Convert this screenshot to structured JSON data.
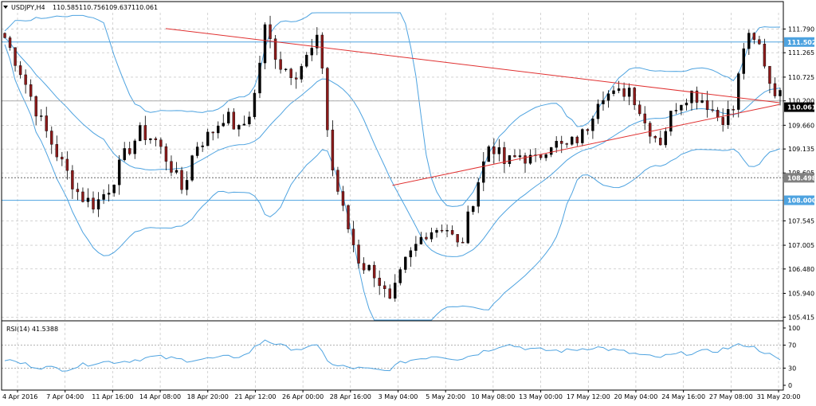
{
  "colors": {
    "background": "#ffffff",
    "grid": "#b8b8b8",
    "bull_candle": "#000000",
    "bear_candle": "#8b1a1a",
    "bollinger": "#4ea3e0",
    "level_line": "#4ea3e0",
    "trend_line": "#e03030",
    "rsi_line": "#4ea3e0",
    "price_tag_current": "#000000"
  },
  "chart_data": {
    "type": "candlestick",
    "title": "USDJPY,H4",
    "header": {
      "symbol_label": "USDJPY,H4",
      "open": "110.585",
      "high": "110.756",
      "low": "109.637",
      "close": "110.061"
    },
    "ylim": [
      105.35,
      112.15
    ],
    "y_ticks": [
      "111.790",
      "111.265",
      "110.725",
      "110.200",
      "109.660",
      "109.135",
      "108.605",
      "107.545",
      "107.005",
      "106.480",
      "105.940",
      "105.415"
    ],
    "x_tick_labels": [
      "4 Apr 2016",
      "7 Apr 04:00",
      "11 Apr 16:00",
      "14 Apr 08:00",
      "18 Apr 20:00",
      "21 Apr 12:00",
      "26 Apr 00:00",
      "28 Apr 16:00",
      "3 May 04:00",
      "5 May 20:00",
      "10 May 08:00",
      "13 May 00:00",
      "17 May 12:00",
      "20 May 04:00",
      "24 May 16:00",
      "27 May 08:00",
      "31 May 20:00"
    ],
    "horizontal_levels": [
      {
        "value": 111.502,
        "label": "111.502",
        "style": "solid"
      },
      {
        "value": 110.2,
        "label": "",
        "style": "solid-gray"
      },
      {
        "value": 108.498,
        "label": "108.498",
        "style": "dotted"
      },
      {
        "value": 108.0,
        "label": "108.000",
        "style": "solid"
      }
    ],
    "current_price": {
      "value": 110.061,
      "label": "110.061"
    },
    "trendlines": [
      {
        "from": [
          0.21,
          111.8
        ],
        "to": [
          0.995,
          110.16
        ]
      },
      {
        "from": [
          0.5,
          108.33
        ],
        "to": [
          0.995,
          110.12
        ]
      }
    ],
    "price_anchors": [
      [
        0,
        111.6
      ],
      [
        0.015,
        110.9
      ],
      [
        0.035,
        109.8
      ],
      [
        0.055,
        108.9
      ],
      [
        0.075,
        108.1
      ],
      [
        0.09,
        107.9
      ],
      [
        0.105,
        108.3
      ],
      [
        0.12,
        109.0
      ],
      [
        0.135,
        109.5
      ],
      [
        0.15,
        109.35
      ],
      [
        0.165,
        108.8
      ],
      [
        0.178,
        108.2
      ],
      [
        0.19,
        109.2
      ],
      [
        0.205,
        109.45
      ],
      [
        0.22,
        109.9
      ],
      [
        0.235,
        109.5
      ],
      [
        0.248,
        110.1
      ],
      [
        0.26,
        111.8
      ],
      [
        0.275,
        111.0
      ],
      [
        0.29,
        110.8
      ],
      [
        0.305,
        111.25
      ],
      [
        0.315,
        111.6
      ],
      [
        0.325,
        108.9
      ],
      [
        0.34,
        107.6
      ],
      [
        0.355,
        106.6
      ],
      [
        0.37,
        106.4
      ],
      [
        0.385,
        105.7
      ],
      [
        0.4,
        106.6
      ],
      [
        0.42,
        107.3
      ],
      [
        0.44,
        107.45
      ],
      [
        0.455,
        106.9
      ],
      [
        0.47,
        108.2
      ],
      [
        0.485,
        109.3
      ],
      [
        0.5,
        108.8
      ],
      [
        0.515,
        109.0
      ],
      [
        0.53,
        108.85
      ],
      [
        0.545,
        109.3
      ],
      [
        0.56,
        109.15
      ],
      [
        0.58,
        109.5
      ],
      [
        0.595,
        110.4
      ],
      [
        0.61,
        110.3
      ],
      [
        0.625,
        110.5
      ],
      [
        0.64,
        109.7
      ],
      [
        0.655,
        109.3
      ],
      [
        0.67,
        110.1
      ],
      [
        0.685,
        110.4
      ],
      [
        0.7,
        110.2
      ],
      [
        0.715,
        109.8
      ],
      [
        0.728,
        110.0
      ],
      [
        0.74,
        111.6
      ],
      [
        0.755,
        111.4
      ],
      [
        0.765,
        110.6
      ],
      [
        0.775,
        110.3
      ]
    ],
    "series": [
      {
        "name": "RSI(14) 41.5388"
      }
    ],
    "rsi": {
      "label": "RSI(14) 41.5388",
      "ylim": [
        0,
        100
      ],
      "y_ticks": [
        "100",
        "70",
        "30",
        "0"
      ],
      "levels": [
        70,
        30
      ],
      "anchors": [
        [
          0,
          45
        ],
        [
          0.03,
          33
        ],
        [
          0.06,
          28
        ],
        [
          0.09,
          40
        ],
        [
          0.12,
          42
        ],
        [
          0.15,
          50
        ],
        [
          0.18,
          44
        ],
        [
          0.21,
          47
        ],
        [
          0.24,
          52
        ],
        [
          0.26,
          80
        ],
        [
          0.28,
          66
        ],
        [
          0.3,
          63
        ],
        [
          0.315,
          70
        ],
        [
          0.325,
          35
        ],
        [
          0.35,
          30
        ],
        [
          0.38,
          25
        ],
        [
          0.4,
          42
        ],
        [
          0.43,
          52
        ],
        [
          0.455,
          46
        ],
        [
          0.48,
          60
        ],
        [
          0.5,
          72
        ],
        [
          0.53,
          62
        ],
        [
          0.56,
          60
        ],
        [
          0.59,
          67
        ],
        [
          0.62,
          58
        ],
        [
          0.65,
          48
        ],
        [
          0.68,
          56
        ],
        [
          0.71,
          60
        ],
        [
          0.74,
          72
        ],
        [
          0.76,
          58
        ],
        [
          0.775,
          42
        ]
      ]
    }
  }
}
